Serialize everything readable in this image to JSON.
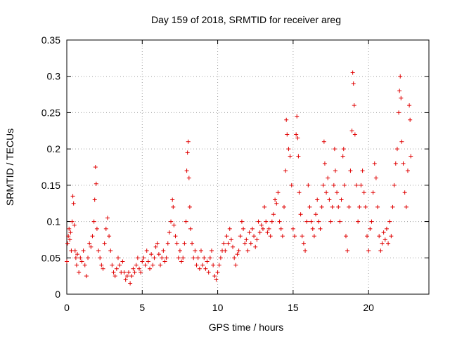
{
  "chart_data": {
    "type": "scatter",
    "title": "Day 159 of 2018, SRMTID for receiver areg",
    "xlabel": "GPS time / hours",
    "ylabel": "SRMTID / TECUs",
    "xlim": [
      0,
      24
    ],
    "ylim": [
      0,
      0.35
    ],
    "x_ticks": [
      0,
      5,
      10,
      15,
      20
    ],
    "x_tick_labels": [
      "0",
      "5",
      "10",
      "15",
      "20"
    ],
    "y_ticks": [
      0,
      0.05,
      0.1,
      0.15,
      0.2,
      0.25,
      0.3,
      0.35
    ],
    "y_tick_labels": [
      "0",
      "0.05",
      "0.1",
      "0.15",
      "0.2",
      "0.25",
      "0.3",
      "0.35"
    ],
    "grid": true,
    "marker": "+",
    "color": "#e00000",
    "series": [
      {
        "name": "SRMTID",
        "points": [
          [
            0.0,
            0.045
          ],
          [
            0.05,
            0.07
          ],
          [
            0.1,
            0.08
          ],
          [
            0.15,
            0.09
          ],
          [
            0.2,
            0.075
          ],
          [
            0.25,
            0.085
          ],
          [
            0.3,
            0.06
          ],
          [
            0.35,
            0.1
          ],
          [
            0.4,
            0.135
          ],
          [
            0.45,
            0.125
          ],
          [
            0.5,
            0.095
          ],
          [
            0.55,
            0.06
          ],
          [
            0.6,
            0.05
          ],
          [
            0.65,
            0.04
          ],
          [
            0.7,
            0.055
          ],
          [
            0.8,
            0.03
          ],
          [
            0.9,
            0.05
          ],
          [
            1.0,
            0.045
          ],
          [
            1.1,
            0.06
          ],
          [
            1.2,
            0.04
          ],
          [
            1.3,
            0.025
          ],
          [
            1.4,
            0.05
          ],
          [
            1.5,
            0.07
          ],
          [
            1.6,
            0.065
          ],
          [
            1.7,
            0.08
          ],
          [
            1.8,
            0.1
          ],
          [
            1.85,
            0.13
          ],
          [
            1.9,
            0.175
          ],
          [
            1.95,
            0.152
          ],
          [
            2.0,
            0.09
          ],
          [
            2.1,
            0.06
          ],
          [
            2.2,
            0.05
          ],
          [
            2.3,
            0.04
          ],
          [
            2.4,
            0.035
          ],
          [
            2.5,
            0.07
          ],
          [
            2.6,
            0.09
          ],
          [
            2.7,
            0.105
          ],
          [
            2.8,
            0.08
          ],
          [
            2.9,
            0.06
          ],
          [
            3.0,
            0.04
          ],
          [
            3.1,
            0.03
          ],
          [
            3.2,
            0.025
          ],
          [
            3.3,
            0.035
          ],
          [
            3.4,
            0.05
          ],
          [
            3.5,
            0.04
          ],
          [
            3.6,
            0.03
          ],
          [
            3.7,
            0.045
          ],
          [
            3.8,
            0.03
          ],
          [
            3.9,
            0.02
          ],
          [
            4.0,
            0.025
          ],
          [
            4.1,
            0.03
          ],
          [
            4.2,
            0.015
          ],
          [
            4.3,
            0.025
          ],
          [
            4.4,
            0.035
          ],
          [
            4.5,
            0.03
          ],
          [
            4.6,
            0.04
          ],
          [
            4.7,
            0.05
          ],
          [
            4.8,
            0.035
          ],
          [
            4.9,
            0.03
          ],
          [
            5.0,
            0.045
          ],
          [
            5.1,
            0.05
          ],
          [
            5.2,
            0.04
          ],
          [
            5.3,
            0.06
          ],
          [
            5.4,
            0.045
          ],
          [
            5.5,
            0.035
          ],
          [
            5.6,
            0.055
          ],
          [
            5.7,
            0.04
          ],
          [
            5.8,
            0.05
          ],
          [
            5.9,
            0.065
          ],
          [
            6.0,
            0.07
          ],
          [
            6.1,
            0.055
          ],
          [
            6.2,
            0.04
          ],
          [
            6.3,
            0.05
          ],
          [
            6.4,
            0.06
          ],
          [
            6.5,
            0.045
          ],
          [
            6.6,
            0.05
          ],
          [
            6.7,
            0.07
          ],
          [
            6.8,
            0.085
          ],
          [
            6.9,
            0.1
          ],
          [
            7.0,
            0.13
          ],
          [
            7.05,
            0.12
          ],
          [
            7.1,
            0.095
          ],
          [
            7.2,
            0.08
          ],
          [
            7.3,
            0.07
          ],
          [
            7.4,
            0.05
          ],
          [
            7.5,
            0.06
          ],
          [
            7.6,
            0.045
          ],
          [
            7.7,
            0.05
          ],
          [
            7.8,
            0.07
          ],
          [
            7.9,
            0.1
          ],
          [
            7.95,
            0.17
          ],
          [
            8.0,
            0.195
          ],
          [
            8.05,
            0.21
          ],
          [
            8.1,
            0.16
          ],
          [
            8.15,
            0.12
          ],
          [
            8.2,
            0.09
          ],
          [
            8.3,
            0.07
          ],
          [
            8.4,
            0.05
          ],
          [
            8.5,
            0.06
          ],
          [
            8.6,
            0.04
          ],
          [
            8.7,
            0.05
          ],
          [
            8.8,
            0.035
          ],
          [
            8.9,
            0.06
          ],
          [
            9.0,
            0.04
          ],
          [
            9.1,
            0.05
          ],
          [
            9.2,
            0.035
          ],
          [
            9.3,
            0.045
          ],
          [
            9.4,
            0.03
          ],
          [
            9.5,
            0.05
          ],
          [
            9.6,
            0.06
          ],
          [
            9.7,
            0.04
          ],
          [
            9.8,
            0.025
          ],
          [
            9.9,
            0.02
          ],
          [
            10.0,
            0.03
          ],
          [
            10.1,
            0.04
          ],
          [
            10.2,
            0.05
          ],
          [
            10.3,
            0.06
          ],
          [
            10.4,
            0.07
          ],
          [
            10.5,
            0.06
          ],
          [
            10.6,
            0.08
          ],
          [
            10.7,
            0.07
          ],
          [
            10.8,
            0.09
          ],
          [
            10.9,
            0.075
          ],
          [
            11.0,
            0.065
          ],
          [
            11.1,
            0.05
          ],
          [
            11.2,
            0.04
          ],
          [
            11.3,
            0.055
          ],
          [
            11.4,
            0.06
          ],
          [
            11.5,
            0.08
          ],
          [
            11.6,
            0.1
          ],
          [
            11.7,
            0.09
          ],
          [
            11.8,
            0.07
          ],
          [
            11.9,
            0.075
          ],
          [
            12.0,
            0.06
          ],
          [
            12.1,
            0.085
          ],
          [
            12.2,
            0.07
          ],
          [
            12.3,
            0.09
          ],
          [
            12.4,
            0.08
          ],
          [
            12.5,
            0.065
          ],
          [
            12.6,
            0.075
          ],
          [
            12.7,
            0.1
          ],
          [
            12.8,
            0.085
          ],
          [
            12.9,
            0.095
          ],
          [
            13.0,
            0.09
          ],
          [
            13.1,
            0.12
          ],
          [
            13.2,
            0.1
          ],
          [
            13.3,
            0.085
          ],
          [
            13.4,
            0.09
          ],
          [
            13.5,
            0.08
          ],
          [
            13.6,
            0.1
          ],
          [
            13.7,
            0.11
          ],
          [
            13.8,
            0.13
          ],
          [
            13.9,
            0.125
          ],
          [
            14.0,
            0.14
          ],
          [
            14.1,
            0.1
          ],
          [
            14.2,
            0.09
          ],
          [
            14.3,
            0.08
          ],
          [
            14.4,
            0.12
          ],
          [
            14.5,
            0.17
          ],
          [
            14.55,
            0.24
          ],
          [
            14.6,
            0.22
          ],
          [
            14.7,
            0.2
          ],
          [
            14.8,
            0.19
          ],
          [
            14.9,
            0.15
          ],
          [
            15.0,
            0.09
          ],
          [
            15.1,
            0.08
          ],
          [
            15.2,
            0.22
          ],
          [
            15.25,
            0.245
          ],
          [
            15.3,
            0.215
          ],
          [
            15.35,
            0.19
          ],
          [
            15.4,
            0.14
          ],
          [
            15.5,
            0.11
          ],
          [
            15.6,
            0.08
          ],
          [
            15.7,
            0.07
          ],
          [
            15.8,
            0.06
          ],
          [
            15.9,
            0.1
          ],
          [
            16.0,
            0.15
          ],
          [
            16.1,
            0.12
          ],
          [
            16.2,
            0.1
          ],
          [
            16.3,
            0.09
          ],
          [
            16.4,
            0.08
          ],
          [
            16.5,
            0.11
          ],
          [
            16.6,
            0.13
          ],
          [
            16.7,
            0.1
          ],
          [
            16.8,
            0.09
          ],
          [
            16.9,
            0.12
          ],
          [
            17.0,
            0.15
          ],
          [
            17.05,
            0.21
          ],
          [
            17.1,
            0.18
          ],
          [
            17.2,
            0.14
          ],
          [
            17.3,
            0.16
          ],
          [
            17.4,
            0.13
          ],
          [
            17.5,
            0.1
          ],
          [
            17.6,
            0.12
          ],
          [
            17.7,
            0.15
          ],
          [
            17.75,
            0.2
          ],
          [
            17.8,
            0.17
          ],
          [
            17.9,
            0.14
          ],
          [
            18.0,
            0.12
          ],
          [
            18.1,
            0.1
          ],
          [
            18.2,
            0.13
          ],
          [
            18.3,
            0.19
          ],
          [
            18.35,
            0.2
          ],
          [
            18.4,
            0.15
          ],
          [
            18.5,
            0.08
          ],
          [
            18.6,
            0.06
          ],
          [
            18.7,
            0.12
          ],
          [
            18.8,
            0.17
          ],
          [
            18.9,
            0.225
          ],
          [
            18.95,
            0.305
          ],
          [
            19.0,
            0.29
          ],
          [
            19.05,
            0.26
          ],
          [
            19.1,
            0.22
          ],
          [
            19.2,
            0.15
          ],
          [
            19.3,
            0.1
          ],
          [
            19.4,
            0.12
          ],
          [
            19.5,
            0.15
          ],
          [
            19.6,
            0.17
          ],
          [
            19.7,
            0.14
          ],
          [
            19.8,
            0.12
          ],
          [
            19.9,
            0.08
          ],
          [
            20.0,
            0.06
          ],
          [
            20.1,
            0.09
          ],
          [
            20.2,
            0.1
          ],
          [
            20.3,
            0.14
          ],
          [
            20.4,
            0.18
          ],
          [
            20.5,
            0.16
          ],
          [
            20.6,
            0.12
          ],
          [
            20.7,
            0.08
          ],
          [
            20.8,
            0.06
          ],
          [
            20.9,
            0.07
          ],
          [
            21.0,
            0.085
          ],
          [
            21.1,
            0.075
          ],
          [
            21.2,
            0.09
          ],
          [
            21.3,
            0.07
          ],
          [
            21.4,
            0.1
          ],
          [
            21.5,
            0.08
          ],
          [
            21.6,
            0.12
          ],
          [
            21.7,
            0.15
          ],
          [
            21.8,
            0.18
          ],
          [
            21.9,
            0.2
          ],
          [
            22.0,
            0.25
          ],
          [
            22.05,
            0.28
          ],
          [
            22.1,
            0.3
          ],
          [
            22.15,
            0.27
          ],
          [
            22.2,
            0.21
          ],
          [
            22.3,
            0.18
          ],
          [
            22.4,
            0.14
          ],
          [
            22.5,
            0.12
          ],
          [
            22.6,
            0.17
          ],
          [
            22.7,
            0.26
          ],
          [
            22.75,
            0.24
          ],
          [
            22.8,
            0.19
          ]
        ]
      }
    ]
  }
}
